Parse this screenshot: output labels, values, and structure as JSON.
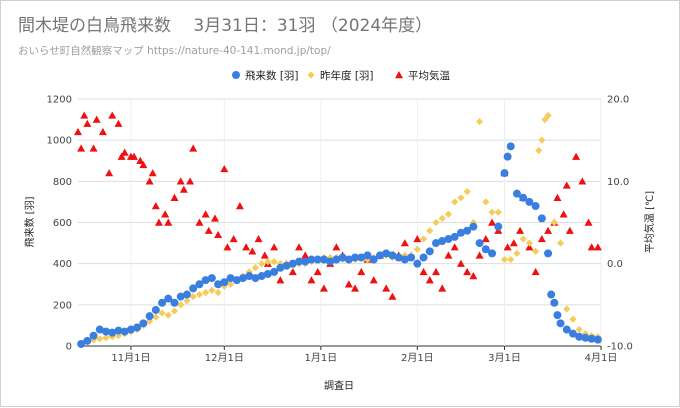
{
  "header": {
    "title": "間木堤の白鳥飛来数　 3月31日：31羽 （2024年度）",
    "subtitle": "おいらせ町自然観察マップ https://nature-40-141.mond.jp/top/"
  },
  "chart_data": {
    "type": "scatter",
    "xlabel": "調査日",
    "ylabel": "飛来数 [羽]",
    "y2label": "平均気温 [℃]",
    "x_start": "2024-10-15",
    "x_end": "2025-04-01",
    "xticks": [
      {
        "label": "11月1日",
        "date": "2024-11-01"
      },
      {
        "label": "12月1日",
        "date": "2024-12-01"
      },
      {
        "label": "1月1日",
        "date": "2025-01-01"
      },
      {
        "label": "2月1日",
        "date": "2025-02-01"
      },
      {
        "label": "3月1日",
        "date": "2025-03-01"
      },
      {
        "label": "4月1日",
        "date": "2025-04-01"
      }
    ],
    "ylim": [
      0,
      1200
    ],
    "yticks": [
      "0",
      "200",
      "400",
      "600",
      "800",
      "1000",
      "1200"
    ],
    "y2lim": [
      -10,
      20
    ],
    "y2ticks": [
      "-10.0",
      "0.0",
      "10.0",
      "20.0"
    ],
    "legend_position": "top-right",
    "series": [
      {
        "name": "飛来数 [羽]",
        "axis": "left",
        "marker": "circle",
        "color": "#3a7ee0",
        "points": [
          [
            "2024-10-16",
            10
          ],
          [
            "2024-10-18",
            25
          ],
          [
            "2024-10-20",
            50
          ],
          [
            "2024-10-22",
            80
          ],
          [
            "2024-10-24",
            70
          ],
          [
            "2024-10-26",
            65
          ],
          [
            "2024-10-28",
            75
          ],
          [
            "2024-10-30",
            70
          ],
          [
            "2024-11-01",
            80
          ],
          [
            "2024-11-03",
            90
          ],
          [
            "2024-11-05",
            110
          ],
          [
            "2024-11-07",
            145
          ],
          [
            "2024-11-09",
            175
          ],
          [
            "2024-11-11",
            210
          ],
          [
            "2024-11-13",
            230
          ],
          [
            "2024-11-15",
            210
          ],
          [
            "2024-11-17",
            240
          ],
          [
            "2024-11-19",
            250
          ],
          [
            "2024-11-21",
            280
          ],
          [
            "2024-11-23",
            300
          ],
          [
            "2024-11-25",
            320
          ],
          [
            "2024-11-27",
            330
          ],
          [
            "2024-11-29",
            300
          ],
          [
            "2024-12-01",
            310
          ],
          [
            "2024-12-03",
            330
          ],
          [
            "2024-12-05",
            320
          ],
          [
            "2024-12-07",
            330
          ],
          [
            "2024-12-09",
            340
          ],
          [
            "2024-12-11",
            330
          ],
          [
            "2024-12-13",
            340
          ],
          [
            "2024-12-15",
            350
          ],
          [
            "2024-12-17",
            360
          ],
          [
            "2024-12-19",
            380
          ],
          [
            "2024-12-21",
            390
          ],
          [
            "2024-12-23",
            400
          ],
          [
            "2024-12-25",
            410
          ],
          [
            "2024-12-27",
            410
          ],
          [
            "2024-12-29",
            420
          ],
          [
            "2024-12-31",
            420
          ],
          [
            "2025-01-02",
            420
          ],
          [
            "2025-01-04",
            410
          ],
          [
            "2025-01-06",
            420
          ],
          [
            "2025-01-08",
            430
          ],
          [
            "2025-01-10",
            420
          ],
          [
            "2025-01-12",
            430
          ],
          [
            "2025-01-14",
            430
          ],
          [
            "2025-01-16",
            440
          ],
          [
            "2025-01-18",
            420
          ],
          [
            "2025-01-20",
            440
          ],
          [
            "2025-01-22",
            450
          ],
          [
            "2025-01-24",
            440
          ],
          [
            "2025-01-26",
            430
          ],
          [
            "2025-01-28",
            420
          ],
          [
            "2025-01-30",
            430
          ],
          [
            "2025-02-01",
            400
          ],
          [
            "2025-02-03",
            430
          ],
          [
            "2025-02-05",
            460
          ],
          [
            "2025-02-07",
            500
          ],
          [
            "2025-02-09",
            510
          ],
          [
            "2025-02-11",
            520
          ],
          [
            "2025-02-13",
            530
          ],
          [
            "2025-02-15",
            550
          ],
          [
            "2025-02-17",
            560
          ],
          [
            "2025-02-19",
            580
          ],
          [
            "2025-02-21",
            500
          ],
          [
            "2025-02-23",
            470
          ],
          [
            "2025-02-25",
            450
          ],
          [
            "2025-02-27",
            580
          ],
          [
            "2025-03-01",
            840
          ],
          [
            "2025-03-02",
            920
          ],
          [
            "2025-03-03",
            970
          ],
          [
            "2025-03-05",
            740
          ],
          [
            "2025-03-07",
            720
          ],
          [
            "2025-03-09",
            700
          ],
          [
            "2025-03-11",
            680
          ],
          [
            "2025-03-13",
            620
          ],
          [
            "2025-03-15",
            450
          ],
          [
            "2025-03-16",
            250
          ],
          [
            "2025-03-17",
            210
          ],
          [
            "2025-03-18",
            150
          ],
          [
            "2025-03-19",
            110
          ],
          [
            "2025-03-21",
            80
          ],
          [
            "2025-03-23",
            60
          ],
          [
            "2025-03-25",
            45
          ],
          [
            "2025-03-27",
            40
          ],
          [
            "2025-03-29",
            35
          ],
          [
            "2025-03-31",
            31
          ]
        ]
      },
      {
        "name": "昨年度 [羽]",
        "axis": "left",
        "marker": "diamond",
        "color": "#f5cc5a",
        "points": [
          [
            "2024-10-16",
            10
          ],
          [
            "2024-10-18",
            20
          ],
          [
            "2024-10-20",
            30
          ],
          [
            "2024-10-22",
            35
          ],
          [
            "2024-10-24",
            40
          ],
          [
            "2024-10-26",
            45
          ],
          [
            "2024-10-28",
            50
          ],
          [
            "2024-10-30",
            60
          ],
          [
            "2024-11-01",
            70
          ],
          [
            "2024-11-03",
            80
          ],
          [
            "2024-11-05",
            100
          ],
          [
            "2024-11-07",
            120
          ],
          [
            "2024-11-09",
            140
          ],
          [
            "2024-11-11",
            160
          ],
          [
            "2024-11-13",
            150
          ],
          [
            "2024-11-15",
            170
          ],
          [
            "2024-11-17",
            200
          ],
          [
            "2024-11-19",
            220
          ],
          [
            "2024-11-21",
            240
          ],
          [
            "2024-11-23",
            250
          ],
          [
            "2024-11-25",
            260
          ],
          [
            "2024-11-27",
            270
          ],
          [
            "2024-11-29",
            260
          ],
          [
            "2024-12-01",
            290
          ],
          [
            "2024-12-03",
            300
          ],
          [
            "2024-12-05",
            320
          ],
          [
            "2024-12-07",
            340
          ],
          [
            "2024-12-09",
            360
          ],
          [
            "2024-12-11",
            380
          ],
          [
            "2024-12-13",
            400
          ],
          [
            "2024-12-15",
            410
          ],
          [
            "2024-12-17",
            410
          ],
          [
            "2024-12-19",
            400
          ],
          [
            "2024-12-21",
            400
          ],
          [
            "2024-12-23",
            390
          ],
          [
            "2024-12-25",
            400
          ],
          [
            "2024-12-27",
            400
          ],
          [
            "2024-12-29",
            410
          ],
          [
            "2024-12-31",
            420
          ],
          [
            "2025-01-02",
            430
          ],
          [
            "2025-01-04",
            430
          ],
          [
            "2025-01-06",
            430
          ],
          [
            "2025-01-08",
            420
          ],
          [
            "2025-01-10",
            420
          ],
          [
            "2025-01-12",
            420
          ],
          [
            "2025-01-14",
            430
          ],
          [
            "2025-01-16",
            420
          ],
          [
            "2025-01-18",
            430
          ],
          [
            "2025-01-20",
            440
          ],
          [
            "2025-01-22",
            440
          ],
          [
            "2025-01-24",
            430
          ],
          [
            "2025-01-26",
            430
          ],
          [
            "2025-01-28",
            440
          ],
          [
            "2025-01-30",
            440
          ],
          [
            "2025-02-01",
            470
          ],
          [
            "2025-02-03",
            520
          ],
          [
            "2025-02-05",
            560
          ],
          [
            "2025-02-07",
            600
          ],
          [
            "2025-02-09",
            620
          ],
          [
            "2025-02-11",
            640
          ],
          [
            "2025-02-13",
            700
          ],
          [
            "2025-02-15",
            720
          ],
          [
            "2025-02-17",
            750
          ],
          [
            "2025-02-19",
            600
          ],
          [
            "2025-02-21",
            1090
          ],
          [
            "2025-02-23",
            700
          ],
          [
            "2025-02-25",
            650
          ],
          [
            "2025-02-27",
            650
          ],
          [
            "2025-03-01",
            420
          ],
          [
            "2025-03-03",
            420
          ],
          [
            "2025-03-05",
            450
          ],
          [
            "2025-03-07",
            520
          ],
          [
            "2025-03-09",
            500
          ],
          [
            "2025-03-11",
            460
          ],
          [
            "2025-03-12",
            950
          ],
          [
            "2025-03-13",
            1000
          ],
          [
            "2025-03-14",
            1100
          ],
          [
            "2025-03-15",
            1120
          ],
          [
            "2025-03-17",
            600
          ],
          [
            "2025-03-19",
            500
          ],
          [
            "2025-03-21",
            180
          ],
          [
            "2025-03-23",
            130
          ],
          [
            "2025-03-25",
            80
          ],
          [
            "2025-03-27",
            60
          ],
          [
            "2025-03-29",
            50
          ],
          [
            "2025-03-31",
            45
          ]
        ]
      },
      {
        "name": "平均気温",
        "axis": "right",
        "marker": "triangle",
        "color": "#ee1111",
        "points": [
          [
            "2024-10-15",
            16
          ],
          [
            "2024-10-16",
            14
          ],
          [
            "2024-10-17",
            18
          ],
          [
            "2024-10-18",
            17
          ],
          [
            "2024-10-20",
            14
          ],
          [
            "2024-10-21",
            17.5
          ],
          [
            "2024-10-23",
            16
          ],
          [
            "2024-10-25",
            11
          ],
          [
            "2024-10-26",
            18
          ],
          [
            "2024-10-28",
            17
          ],
          [
            "2024-10-29",
            13
          ],
          [
            "2024-10-30",
            13.5
          ],
          [
            "2024-11-01",
            13
          ],
          [
            "2024-11-02",
            13
          ],
          [
            "2024-11-04",
            12.5
          ],
          [
            "2024-11-05",
            12
          ],
          [
            "2024-11-07",
            10
          ],
          [
            "2024-11-08",
            11
          ],
          [
            "2024-11-09",
            7
          ],
          [
            "2024-11-10",
            5
          ],
          [
            "2024-11-12",
            6
          ],
          [
            "2024-11-13",
            5
          ],
          [
            "2024-11-15",
            8
          ],
          [
            "2024-11-17",
            10
          ],
          [
            "2024-11-18",
            9
          ],
          [
            "2024-11-20",
            10
          ],
          [
            "2024-11-21",
            14
          ],
          [
            "2024-11-23",
            5
          ],
          [
            "2024-11-25",
            6
          ],
          [
            "2024-11-26",
            4
          ],
          [
            "2024-11-28",
            5.5
          ],
          [
            "2024-11-29",
            3.5
          ],
          [
            "2024-12-01",
            11.5
          ],
          [
            "2024-12-02",
            2
          ],
          [
            "2024-12-04",
            3
          ],
          [
            "2024-12-06",
            7
          ],
          [
            "2024-12-08",
            2
          ],
          [
            "2024-12-10",
            1.5
          ],
          [
            "2024-12-12",
            3
          ],
          [
            "2024-12-14",
            1
          ],
          [
            "2024-12-15",
            0
          ],
          [
            "2024-12-17",
            2
          ],
          [
            "2024-12-19",
            -2
          ],
          [
            "2024-12-21",
            0
          ],
          [
            "2024-12-23",
            -1
          ],
          [
            "2024-12-25",
            2
          ],
          [
            "2024-12-27",
            1
          ],
          [
            "2024-12-29",
            -2
          ],
          [
            "2024-12-31",
            -1
          ],
          [
            "2025-01-02",
            -3
          ],
          [
            "2025-01-04",
            0
          ],
          [
            "2025-01-06",
            2
          ],
          [
            "2025-01-08",
            1
          ],
          [
            "2025-01-10",
            -2.5
          ],
          [
            "2025-01-12",
            -3
          ],
          [
            "2025-01-14",
            -1
          ],
          [
            "2025-01-16",
            0.5
          ],
          [
            "2025-01-18",
            -2
          ],
          [
            "2025-01-20",
            1
          ],
          [
            "2025-01-22",
            -3
          ],
          [
            "2025-01-24",
            -4
          ],
          [
            "2025-01-26",
            1
          ],
          [
            "2025-01-28",
            2.5
          ],
          [
            "2025-01-30",
            1
          ],
          [
            "2025-02-01",
            3
          ],
          [
            "2025-02-03",
            -1
          ],
          [
            "2025-02-05",
            -2
          ],
          [
            "2025-02-07",
            -1
          ],
          [
            "2025-02-09",
            -3
          ],
          [
            "2025-02-11",
            1
          ],
          [
            "2025-02-13",
            2
          ],
          [
            "2025-02-15",
            0
          ],
          [
            "2025-02-17",
            -1
          ],
          [
            "2025-02-19",
            -1.5
          ],
          [
            "2025-02-21",
            1
          ],
          [
            "2025-02-23",
            3
          ],
          [
            "2025-02-25",
            5
          ],
          [
            "2025-02-27",
            4
          ],
          [
            "2025-03-01",
            11
          ],
          [
            "2025-03-02",
            2
          ],
          [
            "2025-03-04",
            2.5
          ],
          [
            "2025-03-06",
            4
          ],
          [
            "2025-03-07",
            8
          ],
          [
            "2025-03-09",
            2
          ],
          [
            "2025-03-11",
            -1
          ],
          [
            "2025-03-13",
            3
          ],
          [
            "2025-03-15",
            4
          ],
          [
            "2025-03-17",
            5
          ],
          [
            "2025-03-18",
            8
          ],
          [
            "2025-03-20",
            6
          ],
          [
            "2025-03-21",
            9.5
          ],
          [
            "2025-03-22",
            4
          ],
          [
            "2025-03-24",
            13
          ],
          [
            "2025-03-26",
            10
          ],
          [
            "2025-03-28",
            5
          ],
          [
            "2025-03-29",
            2
          ],
          [
            "2025-03-31",
            2
          ]
        ]
      }
    ]
  }
}
